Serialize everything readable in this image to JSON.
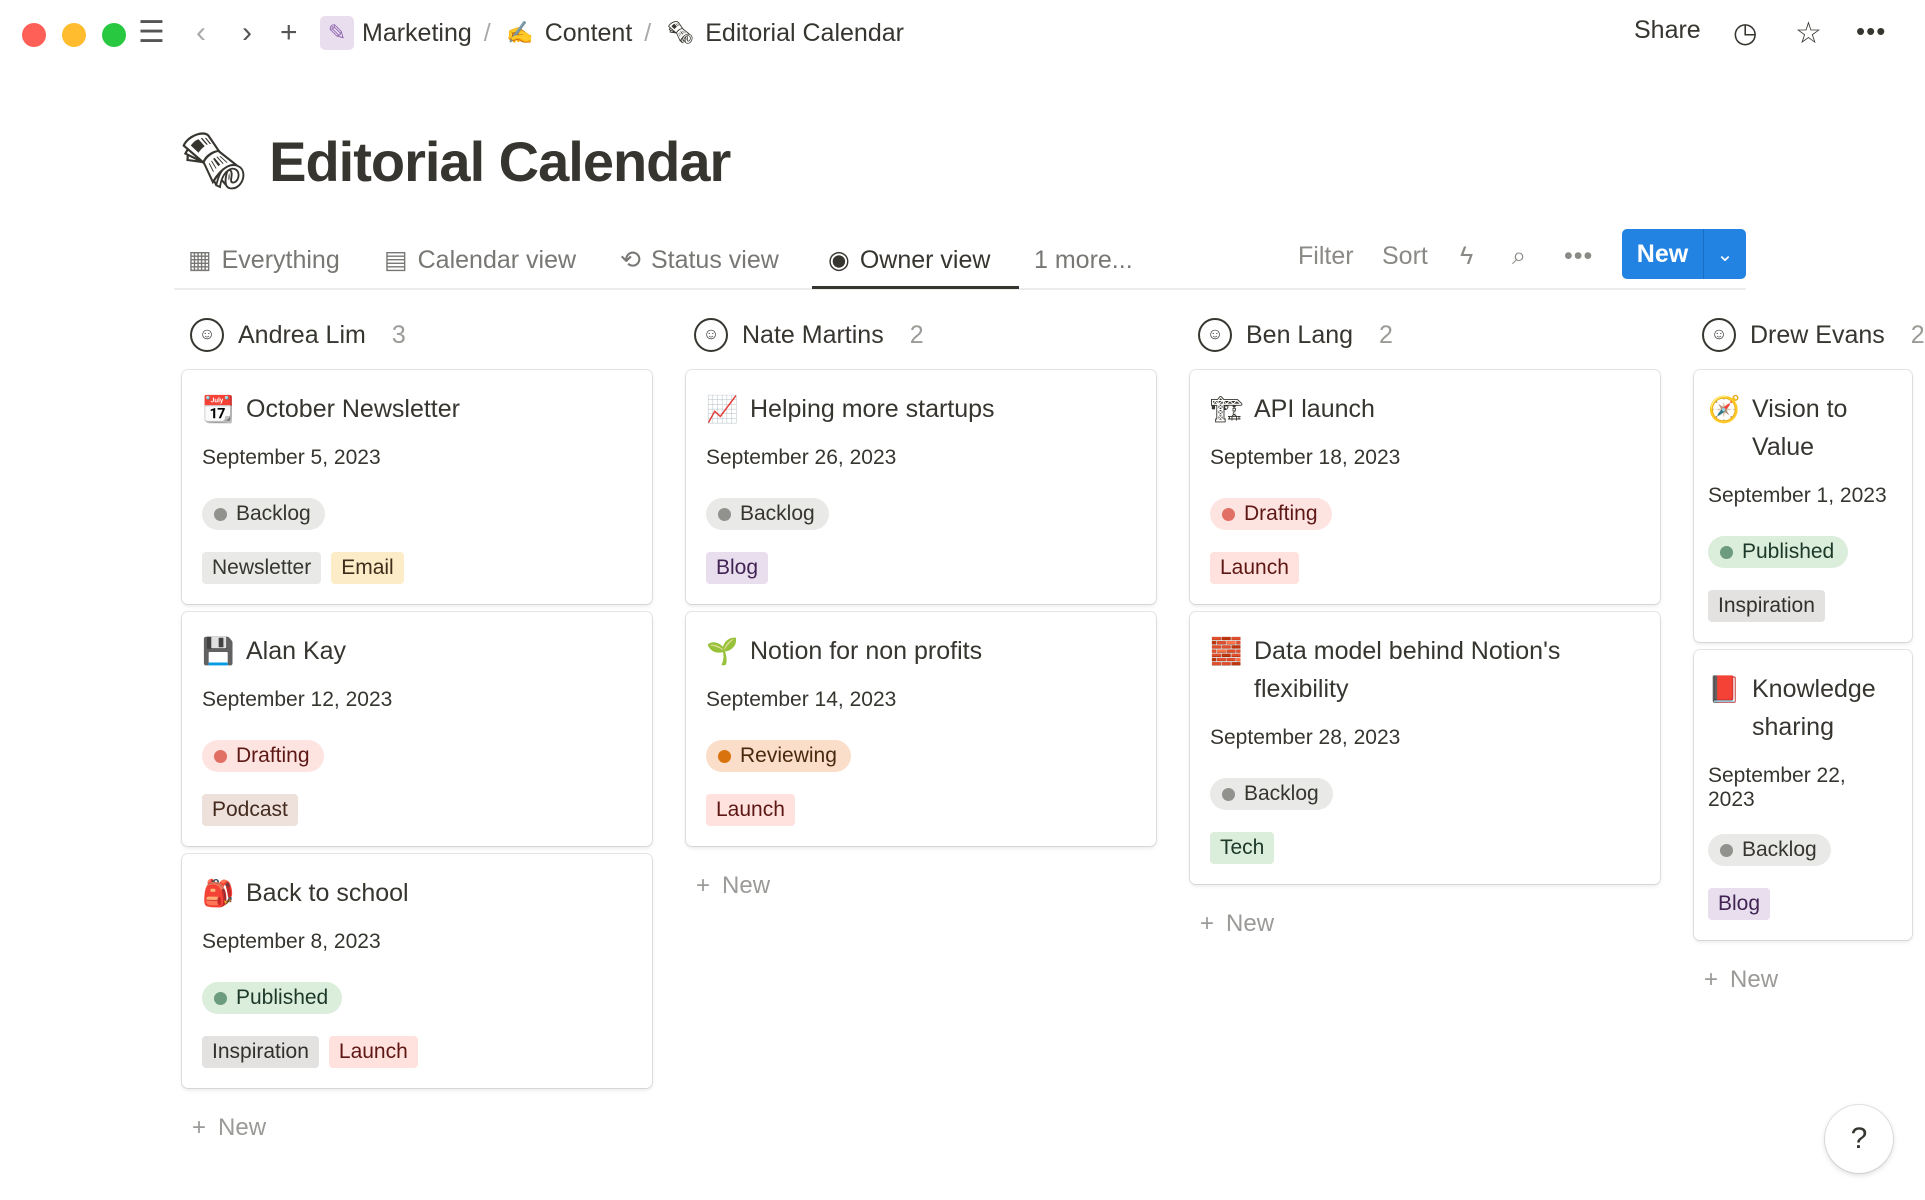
{
  "breadcrumb": [
    {
      "icon": "📝",
      "label": "Marketing"
    },
    {
      "icon": "✍",
      "label": "Content"
    },
    {
      "icon": "🗞",
      "label": "Editorial Calendar"
    }
  ],
  "topbar": {
    "share": "Share"
  },
  "page": {
    "icon": "🗞",
    "title": "Editorial Calendar"
  },
  "tabs": [
    {
      "label": "Everything",
      "icon": "table-icon"
    },
    {
      "label": "Calendar view",
      "icon": "calendar-icon"
    },
    {
      "label": "Status view",
      "icon": "status-icon"
    },
    {
      "label": "Owner view",
      "icon": "person-icon",
      "active": true
    },
    {
      "label": "1 more..."
    }
  ],
  "toolbar": {
    "filter": "Filter",
    "sort": "Sort",
    "new": "New"
  },
  "colors": {
    "accent": "#2383e2"
  },
  "columns": [
    {
      "owner": "Andrea Lim",
      "count": "3",
      "cards": [
        {
          "icon": "📆",
          "title": "October Newsletter",
          "date": "September 5, 2023",
          "status": "Backlog",
          "tags": [
            "Newsletter",
            "Email"
          ]
        },
        {
          "icon": "💾",
          "title": "Alan Kay",
          "date": "September 12, 2023",
          "status": "Drafting",
          "tags": [
            "Podcast"
          ]
        },
        {
          "icon": "🎒",
          "title": "Back to school",
          "date": "September 8, 2023",
          "status": "Published",
          "tags": [
            "Inspiration",
            "Launch"
          ]
        }
      ]
    },
    {
      "owner": "Nate Martins",
      "count": "2",
      "cards": [
        {
          "icon": "📈",
          "title": "Helping more startups",
          "date": "September 26, 2023",
          "status": "Backlog",
          "tags": [
            "Blog"
          ]
        },
        {
          "icon": "🌱",
          "title": "Notion for non profits",
          "date": "September 14, 2023",
          "status": "Reviewing",
          "tags": [
            "Launch"
          ]
        }
      ]
    },
    {
      "owner": "Ben Lang",
      "count": "2",
      "cards": [
        {
          "icon": "🏗",
          "title": "API launch",
          "date": "September 18, 2023",
          "status": "Drafting",
          "tags": [
            "Launch"
          ]
        },
        {
          "icon": "🧱",
          "title": "Data model behind Notion's flexibility",
          "date": "September 28, 2023",
          "status": "Backlog",
          "tags": [
            "Tech"
          ]
        }
      ]
    },
    {
      "owner": "Drew Evans",
      "count": "2",
      "cards": [
        {
          "icon": "🧭",
          "title": "Vision to Value",
          "date": "September 1, 2023",
          "status": "Published",
          "tags": [
            "Inspiration"
          ]
        },
        {
          "icon": "📕",
          "title": "Knowledge sharing",
          "date": "September 22, 2023",
          "status": "Backlog",
          "tags": [
            "Blog"
          ]
        }
      ]
    }
  ],
  "add_new": "New",
  "help": "?"
}
